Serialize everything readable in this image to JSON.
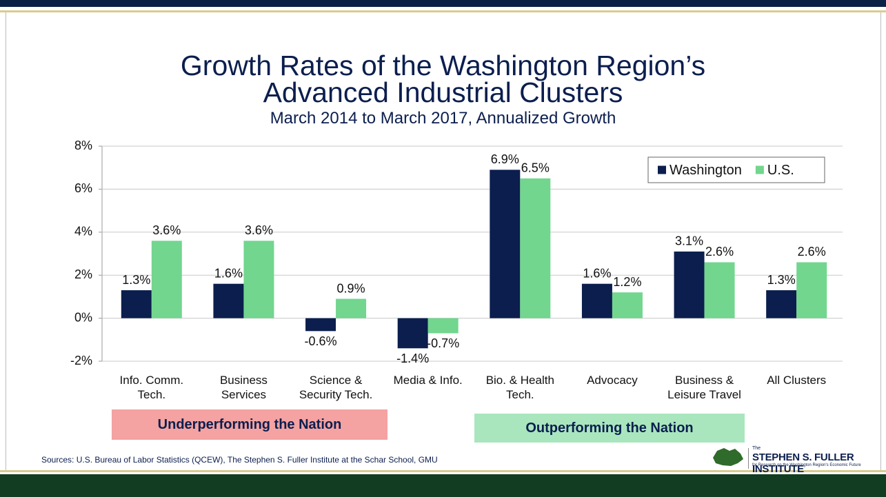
{
  "chart_data": {
    "type": "bar",
    "title": "Growth Rates of the Washington Region’s Advanced Industrial Clusters",
    "subtitle": "March 2014 to March 2017, Annualized Growth",
    "categories": [
      "Info. Comm. Tech.",
      "Business Services",
      "Science & Security Tech.",
      "Media & Info.",
      "Bio. & Health Tech.",
      "Advocacy",
      "Business & Leisure Travel",
      "All Clusters"
    ],
    "series": [
      {
        "name": "Washington",
        "color": "#0b1e4e",
        "values": [
          1.3,
          1.6,
          -0.6,
          -1.4,
          6.9,
          1.6,
          3.1,
          1.3
        ],
        "value_labels": [
          "1.3%",
          "1.6%",
          "-0.6%",
          "-1.4%",
          "6.9%",
          "1.6%",
          "3.1%",
          "1.3%"
        ]
      },
      {
        "name": "U.S.",
        "color": "#72d68e",
        "values": [
          3.6,
          3.6,
          0.9,
          -0.7,
          6.5,
          1.2,
          2.6,
          2.6
        ],
        "value_labels": [
          "3.6%",
          "3.6%",
          "0.9%",
          "-0.7%",
          "6.5%",
          "1.2%",
          "2.6%",
          "2.6%"
        ]
      }
    ],
    "ylim": [
      -2,
      8
    ],
    "yticks": [
      {
        "value": -2,
        "label": "-2%"
      },
      {
        "value": 0,
        "label": "0%"
      },
      {
        "value": 2,
        "label": "2%"
      },
      {
        "value": 4,
        "label": "4%"
      },
      {
        "value": 6,
        "label": "6%"
      },
      {
        "value": 8,
        "label": "8%"
      }
    ],
    "grid": true,
    "legend": "top-right"
  },
  "banners": [
    "Underperforming the Nation",
    "Outperforming the Nation"
  ],
  "source": "Sources: U.S. Bureau of Labor Statistics (QCEW), The Stephen S. Fuller Institute at the Schar School, GMU",
  "logo": {
    "prefix": "The",
    "name": "STEPHEN S. FULLER INSTITUTE",
    "tagline": "for Research on the Washington Region's Economic Future"
  }
}
